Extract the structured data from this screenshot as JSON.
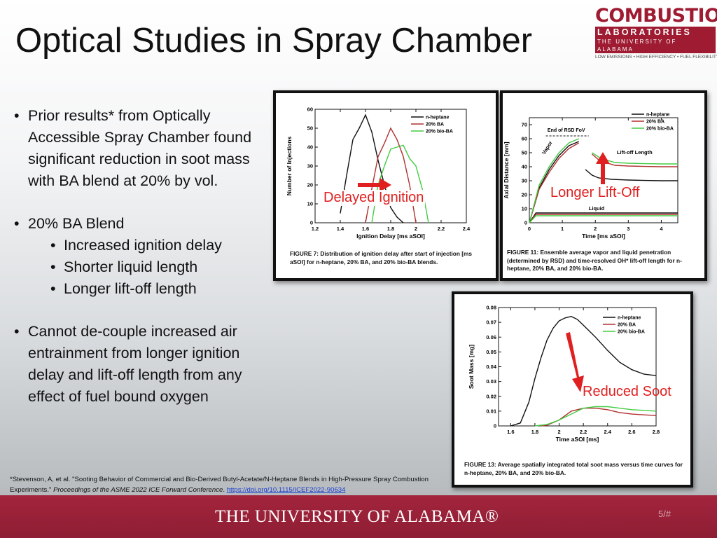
{
  "slide": {
    "title": "Optical Studies in Spray Chamber",
    "page_number": "5/#",
    "footer_text": "THE UNIVERSITY OF ALABAMA®"
  },
  "logo": {
    "line1": "COMBUSTION",
    "line2": "LABORATORIES",
    "line3": "THE UNIVERSITY OF ALABAMA",
    "tagline": "LOW EMISSIONS • HIGH EFFICIENCY • FUEL FLEXIBILITY"
  },
  "bullets": [
    {
      "text": "Prior results* from Optically Accessible Spray Chamber found significant reduction in soot mass with BA blend at 20% by vol."
    },
    {
      "text": "20% BA Blend",
      "sub": [
        "Increased ignition delay",
        "Shorter liquid length",
        "Longer lift-off length"
      ]
    },
    {
      "text": "Cannot de-couple increased air entrainment from longer ignition delay and lift-off length from any effect of fuel bound oxygen"
    }
  ],
  "footnote": {
    "text": "*Stevenson, A, et al. \"Sooting Behavior of Commercial and Bio-Derived Butyl-Acetate/N-Heptane Blends in High-Pressure Spray Combustion Experiments.\" ",
    "journal": "Proceedings of the ASME 2022 ICE Forward Conference",
    "after": ". ",
    "link": "https://doi.org/10.1115/ICEF2022-90634"
  },
  "colors": {
    "nheptane": "#111111",
    "ba20": "#b03030",
    "bioba20": "#44cc44",
    "annotation": "#e02020",
    "brand": "#9e1b32"
  },
  "annotations": {
    "fig7": "Delayed Ignition",
    "fig11": "Longer Lift-Off",
    "fig13": "Reduced Soot"
  },
  "chart_data": [
    {
      "type": "line",
      "caption": "FIGURE 7: Distribution of ignition delay after start of injection [ms aSOI] for n-heptane, 20% BA, and 20% bio-BA blends.",
      "xlabel": "Ignition Delay [ms aSOI]",
      "ylabel": "Number of Injections",
      "xlim": [
        1.2,
        2.4
      ],
      "ylim": [
        0,
        60
      ],
      "xticks": [
        "1.2",
        "1.4",
        "1.6",
        "1.8",
        "2",
        "2.2",
        "2.4"
      ],
      "yticks": [
        "0",
        "10",
        "20",
        "30",
        "40",
        "50",
        "60"
      ],
      "legend": [
        "n-heptane",
        "20% BA",
        "20% bio-BA"
      ],
      "series": [
        {
          "name": "n-heptane",
          "x": [
            1.4,
            1.45,
            1.5,
            1.55,
            1.6,
            1.65,
            1.7,
            1.75,
            1.8,
            1.85,
            1.9
          ],
          "y": [
            5,
            25,
            44,
            50,
            57,
            48,
            33,
            20,
            8,
            3,
            0
          ]
        },
        {
          "name": "20% BA",
          "x": [
            1.6,
            1.65,
            1.7,
            1.75,
            1.8,
            1.85,
            1.9,
            1.95,
            2.0
          ],
          "y": [
            0,
            18,
            35,
            42,
            50,
            44,
            35,
            20,
            0
          ]
        },
        {
          "name": "20% bio-BA",
          "x": [
            1.65,
            1.7,
            1.75,
            1.8,
            1.85,
            1.9,
            1.95,
            2.0,
            2.05,
            2.1
          ],
          "y": [
            0,
            20,
            30,
            39,
            40,
            41,
            34,
            30,
            18,
            0
          ]
        }
      ]
    },
    {
      "type": "line",
      "caption": "FIGURE 11: Ensemble average vapor and liquid penetration (determined by RSD) and time-resolved OH* lift-off length for n-heptane, 20% BA, and 20% bio-BA.",
      "xlabel": "Time [ms aSOI]",
      "ylabel": "Axial Distance [mm]",
      "xlim": [
        0,
        4.5
      ],
      "ylim": [
        0,
        75
      ],
      "xticks": [
        "0",
        "1",
        "2",
        "3",
        "4"
      ],
      "yticks": [
        "0",
        "10",
        "20",
        "30",
        "40",
        "50",
        "60",
        "70"
      ],
      "legend": [
        "n-heptane",
        "20% BA",
        "20% bio-BA"
      ],
      "labels": {
        "rsd": "End of RSD FoV",
        "vapor": "Vapor",
        "liftoff": "Lift-off Length",
        "liquid": "Liquid"
      },
      "series": [
        {
          "name": "n-heptane vapor",
          "x": [
            0,
            0.3,
            0.6,
            0.9,
            1.2,
            1.5
          ],
          "y": [
            0,
            25,
            38,
            48,
            55,
            58
          ]
        },
        {
          "name": "20% BA vapor",
          "x": [
            0,
            0.3,
            0.6,
            0.9,
            1.2,
            1.5
          ],
          "y": [
            0,
            24,
            36,
            46,
            53,
            57
          ]
        },
        {
          "name": "20% bio-BA vapor",
          "x": [
            0,
            0.3,
            0.6,
            0.9,
            1.2,
            1.5
          ],
          "y": [
            0,
            27,
            40,
            50,
            57,
            60
          ]
        },
        {
          "name": "n-heptane lift-off",
          "x": [
            1.7,
            1.9,
            2.1,
            2.5,
            3,
            3.5,
            4,
            4.5
          ],
          "y": [
            38,
            34,
            32,
            31,
            30.5,
            30.2,
            30,
            30
          ]
        },
        {
          "name": "20% BA lift-off",
          "x": [
            1.9,
            2.1,
            2.3,
            2.6,
            3,
            3.5,
            4,
            4.5
          ],
          "y": [
            49,
            45,
            43,
            41,
            40.5,
            40.2,
            40,
            40
          ]
        },
        {
          "name": "20% bio-BA lift-off",
          "x": [
            1.9,
            2.1,
            2.3,
            2.6,
            3,
            3.5,
            4,
            4.5
          ],
          "y": [
            50,
            47,
            45,
            43,
            42.5,
            42.2,
            42,
            42
          ]
        },
        {
          "name": "n-heptane liquid",
          "x": [
            0,
            0.2,
            1,
            2,
            3,
            4,
            4.5
          ],
          "y": [
            0,
            7,
            7,
            7,
            7,
            7,
            7
          ]
        },
        {
          "name": "20% BA liquid",
          "x": [
            0,
            0.2,
            1,
            2,
            3,
            4,
            4.5
          ],
          "y": [
            0,
            6,
            6,
            6,
            6,
            6,
            6
          ]
        },
        {
          "name": "20% bio-BA liquid",
          "x": [
            0,
            0.2,
            1,
            2,
            3,
            4,
            4.5
          ],
          "y": [
            0,
            5,
            5,
            5,
            5,
            5,
            5
          ]
        }
      ]
    },
    {
      "type": "line",
      "caption": "FIGURE 13: Average spatially integrated total soot mass versus time curves for n-heptane, 20% BA, and 20% bio-BA.",
      "xlabel": "Time aSOI [ms]",
      "ylabel": "Soot Mass [mg]",
      "xlim": [
        1.5,
        2.8
      ],
      "ylim": [
        0,
        0.08
      ],
      "xticks": [
        "1.6",
        "1.8",
        "2",
        "2.2",
        "2.4",
        "2.6",
        "2.8"
      ],
      "yticks": [
        "0",
        "0.01",
        "0.02",
        "0.03",
        "0.04",
        "0.05",
        "0.06",
        "0.07",
        "0.08"
      ],
      "legend": [
        "n-heptane",
        "20% BA",
        "20% bio-BA"
      ],
      "series": [
        {
          "name": "n-heptane",
          "x": [
            1.6,
            1.68,
            1.75,
            1.8,
            1.85,
            1.9,
            1.95,
            2.0,
            2.05,
            2.1,
            2.15,
            2.2,
            2.3,
            2.4,
            2.5,
            2.6,
            2.7,
            2.8
          ],
          "y": [
            0,
            0.002,
            0.016,
            0.032,
            0.046,
            0.058,
            0.066,
            0.071,
            0.073,
            0.074,
            0.072,
            0.068,
            0.06,
            0.051,
            0.043,
            0.038,
            0.035,
            0.034
          ]
        },
        {
          "name": "20% BA",
          "x": [
            1.85,
            1.9,
            2.0,
            2.1,
            2.2,
            2.3,
            2.4,
            2.5,
            2.6,
            2.7,
            2.8
          ],
          "y": [
            0,
            0.0005,
            0.004,
            0.01,
            0.012,
            0.012,
            0.011,
            0.009,
            0.008,
            0.0075,
            0.007
          ]
        },
        {
          "name": "20% bio-BA",
          "x": [
            1.8,
            1.9,
            2.0,
            2.1,
            2.2,
            2.3,
            2.4,
            2.5,
            2.6,
            2.7,
            2.8
          ],
          "y": [
            0,
            0.001,
            0.004,
            0.008,
            0.012,
            0.013,
            0.013,
            0.012,
            0.011,
            0.0105,
            0.01
          ]
        }
      ]
    }
  ]
}
